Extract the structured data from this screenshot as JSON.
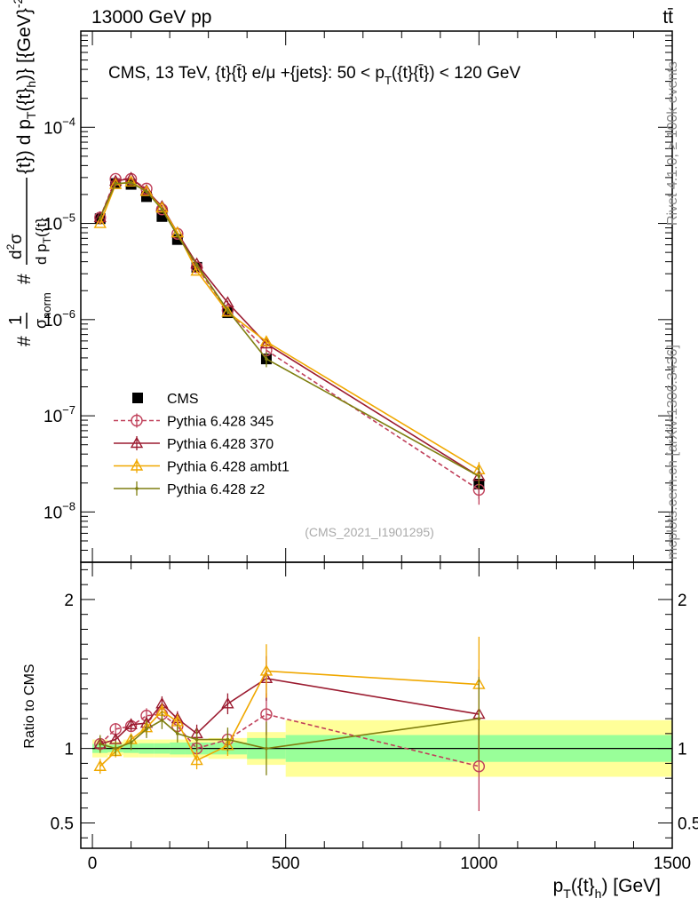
{
  "header": {
    "left": "13000 GeV pp",
    "right": "tt̄"
  },
  "side": {
    "rivet": "Rivet 4.1.0, ≥ 100k events",
    "mcplots": "mcplots.cern.ch [arXiv:1306.3436]"
  },
  "chart_data": [
    {
      "type": "line",
      "yscale": "log",
      "title": "CMS, 13 TeV, {t}{t̄} e/μ +{jets}: 50 <  p_T({t}{t̄}) < 120 GeV",
      "title_parts": {
        "main": "CMS, 13 TeV, {t}{t̄} e/μ +{jets}: 50 <  p",
        "sub": "T",
        "tail": "({t}{t̄}) < 120 GeV"
      },
      "watermark": "(CMS_2021_I1901295)",
      "ylabel": "# 1/σ_norm # d²σ / d p_T({t}) d p_T({t}_h) [{GeV}^-2]",
      "xlim": [
        -30,
        1500
      ],
      "ylim": [
        3e-09,
        0.001
      ],
      "ytick_labels": [
        {
          "base": "10",
          "exp": "−8",
          "value": 1e-08
        },
        {
          "base": "10",
          "exp": "−7",
          "value": 1e-07
        },
        {
          "base": "10",
          "exp": "−6",
          "value": 1e-06
        },
        {
          "base": "10",
          "exp": "−5",
          "value": 1e-05
        },
        {
          "base": "10",
          "exp": "−4",
          "value": 0.0001
        }
      ],
      "x": [
        20,
        60,
        100,
        140,
        180,
        220,
        270,
        350,
        450,
        1000
      ],
      "series": [
        {
          "name": "CMS",
          "color": "#000000",
          "marker": "square",
          "values": [
            1.12e-05,
            2.6e-05,
            2.55e-05,
            1.9e-05,
            1.18e-05,
            6.8e-06,
            3.5e-06,
            1.18e-06,
            3.9e-07,
            1.95e-08
          ],
          "err": [
            0.05,
            0.04,
            0.04,
            0.04,
            0.04,
            0.04,
            0.05,
            0.05,
            0.12,
            0.3
          ]
        },
        {
          "name": "Pythia 6.428 345",
          "color": "#c0405a",
          "marker": "circle",
          "dash": true,
          "values": [
            1.15e-05,
            2.9e-05,
            2.9e-05,
            2.3e-05,
            1.4e-05,
            7.8e-06,
            3.5e-06,
            1.25e-06,
            4.8e-07,
            1.7e-08
          ],
          "err": [
            0.03,
            0.03,
            0.03,
            0.03,
            0.03,
            0.03,
            0.05,
            0.05,
            0.1,
            0.3
          ]
        },
        {
          "name": "Pythia 6.428 370",
          "color": "#9b1b30",
          "marker": "triangle",
          "values": [
            1.15e-05,
            2.75e-05,
            2.95e-05,
            2.2e-05,
            1.5e-05,
            8e-06,
            3.8e-06,
            1.5e-06,
            5.6e-07,
            2.35e-08
          ],
          "err": [
            0.03,
            0.03,
            0.03,
            0.03,
            0.03,
            0.03,
            0.05,
            0.05,
            0.1,
            0.15
          ]
        },
        {
          "name": "Pythia 6.428 ambt1",
          "color": "#f0a800",
          "marker": "triangle",
          "values": [
            1e-05,
            2.55e-05,
            2.7e-05,
            2.15e-05,
            1.45e-05,
            8e-06,
            3.2e-06,
            1.2e-06,
            5.9e-07,
            2.75e-08
          ],
          "err": [
            0.03,
            0.03,
            0.03,
            0.03,
            0.03,
            0.03,
            0.05,
            0.05,
            0.12,
            0.2
          ]
        },
        {
          "name": "Pythia 6.428 z2",
          "color": "#7f7f10",
          "marker": "dot",
          "values": [
            1.15e-05,
            2.6e-05,
            2.65e-05,
            2.15e-05,
            1.4e-05,
            7.5e-06,
            3.7e-06,
            1.25e-06,
            3.9e-07,
            2.35e-08
          ],
          "err": [
            0.04,
            0.04,
            0.04,
            0.04,
            0.04,
            0.04,
            0.06,
            0.06,
            0.18,
            0.25
          ]
        }
      ]
    },
    {
      "type": "line",
      "ylabel": "Ratio to CMS",
      "xlabel": "p_T({t}_h) [GeV]",
      "xlabel_parts": {
        "main": "p",
        "sub": "T",
        "mid": "({t}",
        "sub2": "h",
        "tail": ") [GeV]"
      },
      "xlim": [
        -30,
        1500
      ],
      "ylim": [
        0.33,
        2.25
      ],
      "xtick_labels": [
        "0",
        "500",
        "1000",
        "1500"
      ],
      "xtick_values": [
        0,
        500,
        1000,
        1500
      ],
      "ytick_labels": [
        "0.5",
        "1",
        "2"
      ],
      "ytick_values": [
        0.5,
        1,
        2
      ],
      "bins": [
        [
          0,
          40
        ],
        [
          40,
          80
        ],
        [
          80,
          120
        ],
        [
          120,
          160
        ],
        [
          160,
          200
        ],
        [
          200,
          240
        ],
        [
          240,
          300
        ],
        [
          300,
          400
        ],
        [
          400,
          500
        ],
        [
          500,
          1500
        ]
      ],
      "band_green": [
        0.03,
        0.025,
        0.03,
        0.035,
        0.035,
        0.04,
        0.04,
        0.04,
        0.07,
        0.09
      ],
      "band_yellow": [
        0.06,
        0.045,
        0.06,
        0.06,
        0.06,
        0.06,
        0.06,
        0.07,
        0.11,
        0.19
      ],
      "x": [
        20,
        60,
        100,
        140,
        180,
        220,
        270,
        350,
        450,
        1000
      ],
      "series": [
        {
          "name": "Pythia 6.428 345",
          "color": "#c0405a",
          "marker": "circle",
          "dash": true,
          "values": [
            1.03,
            1.13,
            1.15,
            1.22,
            1.23,
            1.15,
            1.0,
            1.06,
            1.23,
            0.88
          ],
          "err": [
            0.05,
            0.04,
            0.04,
            0.05,
            0.05,
            0.05,
            0.05,
            0.06,
            0.14,
            0.3
          ]
        },
        {
          "name": "Pythia 6.428 370",
          "color": "#9b1b30",
          "marker": "triangle",
          "values": [
            1.03,
            1.06,
            1.16,
            1.17,
            1.3,
            1.2,
            1.1,
            1.3,
            1.47,
            1.23
          ],
          "err": [
            0.05,
            0.04,
            0.04,
            0.05,
            0.05,
            0.05,
            0.06,
            0.07,
            0.15,
            0.3
          ]
        },
        {
          "name": "Pythia 6.428 ambt1",
          "color": "#f0a800",
          "marker": "triangle",
          "values": [
            0.88,
            0.98,
            1.06,
            1.14,
            1.25,
            1.18,
            0.92,
            1.02,
            1.52,
            1.43
          ],
          "err": [
            0.05,
            0.04,
            0.04,
            0.05,
            0.05,
            0.05,
            0.06,
            0.07,
            0.18,
            0.32
          ]
        },
        {
          "name": "Pythia 6.428 z2",
          "color": "#7f7f10",
          "marker": "dot",
          "values": [
            1.03,
            1.0,
            1.04,
            1.13,
            1.19,
            1.1,
            1.06,
            1.06,
            1.0,
            1.2
          ],
          "err": [
            0.06,
            0.05,
            0.05,
            0.06,
            0.06,
            0.06,
            0.07,
            0.08,
            0.18,
            0.28
          ]
        }
      ]
    }
  ]
}
